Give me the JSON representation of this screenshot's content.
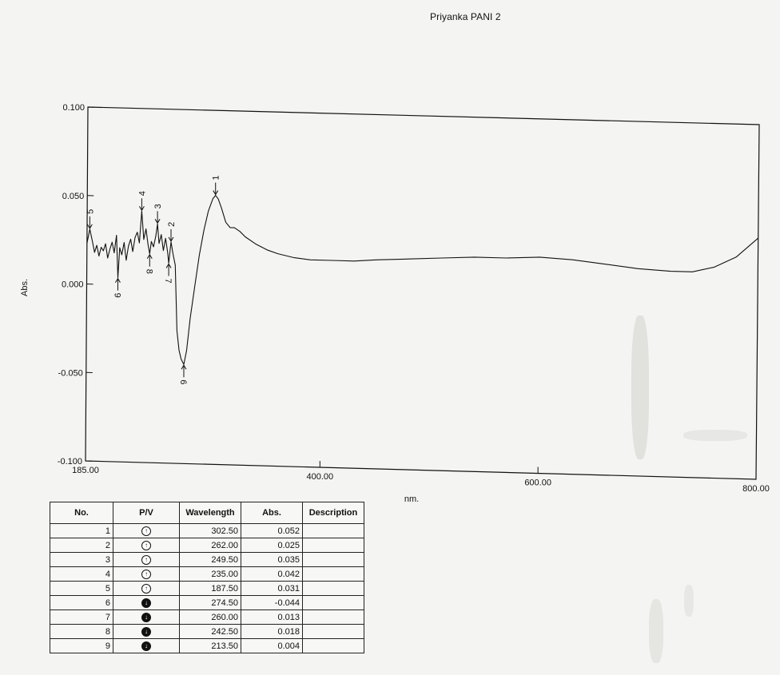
{
  "header": {
    "title": "Priyanka PANI 2"
  },
  "chart_data": {
    "type": "line",
    "title": "Priyanka PANI 2",
    "xlabel": "nm.",
    "ylabel": "Abs.",
    "xlim": [
      185.0,
      800.0
    ],
    "ylim": [
      -0.1,
      0.1
    ],
    "x_ticks": [
      {
        "value": 185.0,
        "label": "185.00"
      },
      {
        "value": 400.0,
        "label": "400.00"
      },
      {
        "value": 600.0,
        "label": "600.00"
      },
      {
        "value": 800.0,
        "label": "800.00"
      }
    ],
    "y_ticks": [
      {
        "value": 0.1,
        "label": "0.100"
      },
      {
        "value": 0.05,
        "label": "0.050"
      },
      {
        "value": 0.0,
        "label": "0.000"
      },
      {
        "value": -0.05,
        "label": "-0.050"
      },
      {
        "value": -0.1,
        "label": "-0.100"
      }
    ],
    "series": [
      {
        "x": [
          185,
          187.5,
          190,
          192,
          194,
          196,
          198,
          200,
          202,
          204,
          206,
          208,
          210,
          212,
          213.5,
          215,
          217,
          219,
          221,
          223,
          225,
          227,
          229,
          231,
          233,
          235,
          237,
          239,
          241,
          242.5,
          244,
          246,
          248,
          249.5,
          251,
          253,
          255,
          257,
          259,
          260,
          262,
          264,
          266,
          268,
          270,
          272,
          274.5,
          277,
          280,
          284,
          288,
          292,
          296,
          300,
          302.5,
          305,
          308,
          312,
          316,
          320,
          325,
          330,
          340,
          350,
          360,
          375,
          390,
          410,
          430,
          450,
          480,
          510,
          540,
          570,
          600,
          630,
          660,
          690,
          720,
          740,
          760,
          780,
          800
        ],
        "y": [
          0.023,
          0.031,
          0.024,
          0.018,
          0.022,
          0.016,
          0.021,
          0.019,
          0.023,
          0.015,
          0.02,
          0.024,
          0.018,
          0.028,
          0.004,
          0.021,
          0.017,
          0.024,
          0.014,
          0.022,
          0.026,
          0.019,
          0.027,
          0.03,
          0.024,
          0.042,
          0.026,
          0.032,
          0.023,
          0.018,
          0.025,
          0.022,
          0.028,
          0.035,
          0.024,
          0.029,
          0.02,
          0.027,
          0.019,
          0.013,
          0.025,
          0.018,
          0.012,
          -0.025,
          -0.036,
          -0.041,
          -0.044,
          -0.036,
          -0.018,
          0.0,
          0.018,
          0.032,
          0.043,
          0.05,
          0.052,
          0.05,
          0.045,
          0.037,
          0.034,
          0.034,
          0.032,
          0.029,
          0.025,
          0.022,
          0.02,
          0.018,
          0.017,
          0.017,
          0.017,
          0.018,
          0.019,
          0.02,
          0.021,
          0.021,
          0.022,
          0.021,
          0.019,
          0.017,
          0.016,
          0.016,
          0.019,
          0.025,
          0.036
        ]
      }
    ],
    "peak_markers": [
      {
        "no": "1",
        "x": 302.5,
        "y": 0.052,
        "type": "peak"
      },
      {
        "no": "2",
        "x": 262.0,
        "y": 0.025,
        "type": "peak"
      },
      {
        "no": "3",
        "x": 249.5,
        "y": 0.035,
        "type": "peak"
      },
      {
        "no": "4",
        "x": 235.0,
        "y": 0.042,
        "type": "peak"
      },
      {
        "no": "5",
        "x": 187.5,
        "y": 0.031,
        "type": "peak"
      },
      {
        "no": "6",
        "x": 274.5,
        "y": -0.044,
        "type": "valley"
      },
      {
        "no": "7",
        "x": 260.0,
        "y": 0.013,
        "type": "valley"
      },
      {
        "no": "8",
        "x": 242.5,
        "y": 0.018,
        "type": "valley"
      },
      {
        "no": "9",
        "x": 213.5,
        "y": 0.004,
        "type": "valley"
      }
    ],
    "grid": false,
    "legend": "none"
  },
  "table": {
    "headers": {
      "no": "No.",
      "pv": "P/V",
      "wavelength": "Wavelength",
      "abs": "Abs.",
      "description": "Description"
    },
    "rows": [
      {
        "no": "1",
        "pv": "peak",
        "wavelength": "302.50",
        "abs": "0.052",
        "description": ""
      },
      {
        "no": "2",
        "pv": "peak",
        "wavelength": "262.00",
        "abs": "0.025",
        "description": ""
      },
      {
        "no": "3",
        "pv": "peak",
        "wavelength": "249.50",
        "abs": "0.035",
        "description": ""
      },
      {
        "no": "4",
        "pv": "peak",
        "wavelength": "235.00",
        "abs": "0.042",
        "description": ""
      },
      {
        "no": "5",
        "pv": "peak",
        "wavelength": "187.50",
        "abs": "0.031",
        "description": ""
      },
      {
        "no": "6",
        "pv": "valley",
        "wavelength": "274.50",
        "abs": "-0.044",
        "description": ""
      },
      {
        "no": "7",
        "pv": "valley",
        "wavelength": "260.00",
        "abs": "0.013",
        "description": ""
      },
      {
        "no": "8",
        "pv": "valley",
        "wavelength": "242.50",
        "abs": "0.018",
        "description": ""
      },
      {
        "no": "9",
        "pv": "valley",
        "wavelength": "213.50",
        "abs": "0.004",
        "description": ""
      }
    ]
  }
}
